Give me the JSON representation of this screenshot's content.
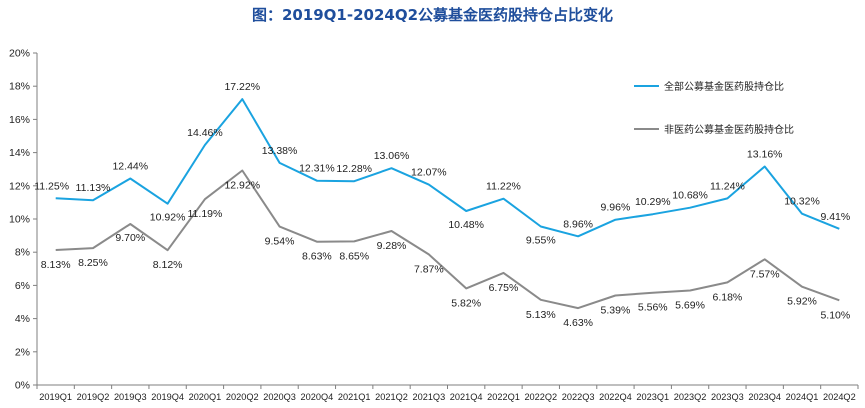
{
  "chart_data": {
    "type": "line",
    "title": "图：2019Q1-2024Q2公募基金医药股持仓占比变化",
    "categories": [
      "2019Q1",
      "2019Q2",
      "2019Q3",
      "2019Q4",
      "2020Q1",
      "2020Q2",
      "2020Q3",
      "2020Q4",
      "2021Q1",
      "2021Q2",
      "2021Q3",
      "2021Q4",
      "2022Q1",
      "2022Q2",
      "2022Q3",
      "2022Q4",
      "2023Q1",
      "2023Q2",
      "2023Q3",
      "2023Q4",
      "2024Q1",
      "2024Q2"
    ],
    "ylim": [
      0,
      20
    ],
    "yticks": [
      "0%",
      "2%",
      "4%",
      "6%",
      "8%",
      "10%",
      "12%",
      "14%",
      "16%",
      "18%",
      "20%"
    ],
    "grid": false,
    "legend_position": "right",
    "series": [
      {
        "name": "全部公募基金医药股持仓比",
        "color": "#1aa3e0",
        "values": [
          11.25,
          11.13,
          12.44,
          10.92,
          14.46,
          17.22,
          13.38,
          12.31,
          12.28,
          13.06,
          12.07,
          10.48,
          11.22,
          9.55,
          8.96,
          9.96,
          10.29,
          10.68,
          11.24,
          13.16,
          10.32,
          9.41
        ],
        "labels": [
          "11.25%",
          "11.13%",
          "12.44%",
          "10.92%",
          "14.46%",
          "17.22%",
          "13.38%",
          "12.31%",
          "12.28%",
          "13.06%",
          "12.07%",
          "10.48%",
          "11.22%",
          "9.55%",
          "8.96%",
          "9.96%",
          "10.29%",
          "10.68%",
          "11.24%",
          "13.16%",
          "10.32%",
          "9.41%"
        ]
      },
      {
        "name": "非医药公募基金医药股持仓比",
        "color": "#8a8a8a",
        "values": [
          8.13,
          8.25,
          9.7,
          8.12,
          11.19,
          12.92,
          9.54,
          8.63,
          8.65,
          9.28,
          7.87,
          5.82,
          6.75,
          5.13,
          4.63,
          5.39,
          5.56,
          5.69,
          6.18,
          7.57,
          5.92,
          5.1
        ],
        "labels": [
          "8.13%",
          "8.25%",
          "9.70%",
          "8.12%",
          "11.19%",
          "12.92%",
          "9.54%",
          "8.63%",
          "8.65%",
          "9.28%",
          "7.87%",
          "5.82%",
          "6.75%",
          "5.13%",
          "4.63%",
          "5.39%",
          "5.56%",
          "5.69%",
          "6.18%",
          "7.57%",
          "5.92%",
          "5.10%"
        ]
      }
    ]
  }
}
